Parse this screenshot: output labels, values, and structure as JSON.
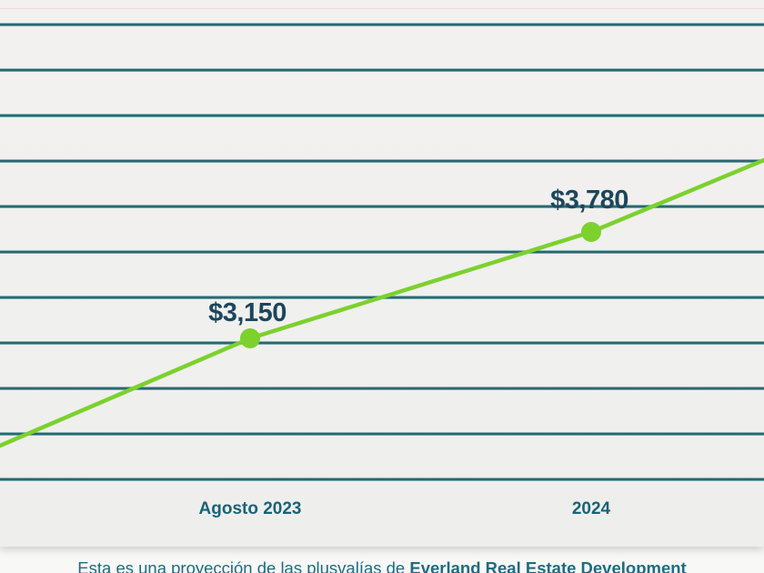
{
  "chart_data": {
    "type": "line",
    "title": "",
    "categories": [
      "Agosto 2023",
      "2024"
    ],
    "values": [
      3150,
      3780
    ],
    "point_labels": [
      "$3,150",
      "$3,780"
    ],
    "xlabel": "",
    "ylabel": "",
    "legend": "none",
    "grid": "horizontal gridlines only, no y-axis tick labels visible",
    "gridline_count": 11,
    "line_color": "#7cd12d",
    "point_color": "#7cd12d",
    "value_label_color": "#1c465c",
    "axis_label_color": "#176379",
    "gridline_color": "#2b6870",
    "trend": "increasing; line extends past both labeled points to left and right chart edges"
  },
  "caption": {
    "text": "Esta es una proyección de las plusvalías de ",
    "brand": "Everland Real Estate Development",
    "color": "#1e6c82"
  }
}
